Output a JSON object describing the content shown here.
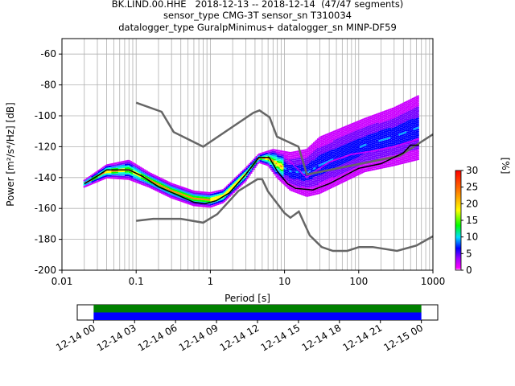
{
  "header": {
    "title_line1": "BK.LIND.00.HHE   2018-12-13 -- 2018-12-14  (47/47 segments)",
    "title_line2": "sensor_type CMG-3T sensor_sn T310034",
    "title_line3": "datalogger_type GuralpMinimus+ datalogger_sn MINP-DF59"
  },
  "chart_data": [
    {
      "type": "heatmap",
      "title": "BK.LIND.00.HHE   2018-12-13 -- 2018-12-14  (47/47 segments)",
      "xlabel": "Period [s]",
      "ylabel": "Power [m²/s⁴/Hz] [dB]",
      "x_scale": "log",
      "xlim": [
        0.01,
        1000
      ],
      "ylim": [
        -200,
        -50
      ],
      "x_ticks": [
        "0.01",
        "0.1",
        "1",
        "10",
        "100",
        "1000"
      ],
      "x_tick_values": [
        0.01,
        0.1,
        1,
        10,
        100,
        1000
      ],
      "y_ticks": [
        "-60",
        "-80",
        "-100",
        "-120",
        "-140",
        "-160",
        "-180",
        "-200"
      ],
      "y_tick_values": [
        -60,
        -80,
        -100,
        -120,
        -140,
        -160,
        -180,
        -200
      ],
      "grid": true,
      "colorbar": {
        "label": "[%]",
        "range": [
          0,
          30
        ],
        "ticks": [
          "0",
          "5",
          "10",
          "15",
          "20",
          "25",
          "30"
        ],
        "tick_values": [
          0,
          5,
          10,
          15,
          20,
          25,
          30
        ]
      },
      "series": [
        {
          "role": "nhnm",
          "color": "#666666",
          "points": [
            [
              0.1,
              -91.5
            ],
            [
              0.22,
              -97.4
            ],
            [
              0.32,
              -110.5
            ],
            [
              0.8,
              -120
            ],
            [
              3.8,
              -98
            ],
            [
              4.6,
              -96.5
            ],
            [
              6.3,
              -101
            ],
            [
              7.9,
              -113.5
            ],
            [
              15.4,
              -120
            ],
            [
              20,
              -138
            ],
            [
              354.8,
              -126
            ],
            [
              1000,
              -112
            ]
          ]
        },
        {
          "role": "nlnm",
          "color": "#666666",
          "points": [
            [
              0.1,
              -168
            ],
            [
              0.17,
              -166.7
            ],
            [
              0.4,
              -166.7
            ],
            [
              0.8,
              -169.2
            ],
            [
              1.24,
              -163.7
            ],
            [
              2.4,
              -148.6
            ],
            [
              4.3,
              -141.1
            ],
            [
              5,
              -141.1
            ],
            [
              6,
              -149
            ],
            [
              10,
              -163
            ],
            [
              12,
              -166
            ],
            [
              15.6,
              -162
            ],
            [
              21.9,
              -177.5
            ],
            [
              31.6,
              -185
            ],
            [
              45,
              -187.5
            ],
            [
              70,
              -187.5
            ],
            [
              101,
              -185
            ],
            [
              154,
              -185
            ],
            [
              328,
              -187.5
            ],
            [
              600,
              -184
            ],
            [
              1000,
              -178
            ]
          ]
        },
        {
          "role": "mode",
          "color": "#000000",
          "points": [
            [
              0.02,
              -144
            ],
            [
              0.03,
              -139
            ],
            [
              0.04,
              -135
            ],
            [
              0.08,
              -135
            ],
            [
              0.12,
              -139
            ],
            [
              0.2,
              -146
            ],
            [
              0.35,
              -151
            ],
            [
              0.6,
              -156
            ],
            [
              0.85,
              -157
            ],
            [
              1.2,
              -155
            ],
            [
              1.8,
              -150
            ],
            [
              3,
              -138
            ],
            [
              4.5,
              -127
            ],
            [
              6.2,
              -127
            ],
            [
              8,
              -136
            ],
            [
              11,
              -144
            ],
            [
              14,
              -147
            ],
            [
              24,
              -148
            ],
            [
              40,
              -144
            ],
            [
              100,
              -134
            ],
            [
              200,
              -131
            ],
            [
              400,
              -124
            ],
            [
              500,
              -119
            ],
            [
              650,
              -119
            ]
          ]
        },
        {
          "role": "distribution-lower-branch",
          "color": "#cc00ff",
          "points": [
            [
              0.02,
              -146
            ],
            [
              0.04,
              -140
            ],
            [
              0.08,
              -141
            ],
            [
              0.15,
              -146
            ],
            [
              0.3,
              -153
            ],
            [
              0.6,
              -158
            ],
            [
              1,
              -159
            ],
            [
              1.5,
              -156
            ],
            [
              3,
              -142
            ],
            [
              4.5,
              -130
            ],
            [
              6,
              -132
            ],
            [
              8,
              -140
            ],
            [
              12,
              -148
            ],
            [
              20,
              -152
            ],
            [
              30,
              -150
            ],
            [
              60,
              -143
            ],
            [
              120,
              -136
            ],
            [
              300,
              -132
            ],
            [
              650,
              -128
            ]
          ]
        },
        {
          "role": "distribution-upper-branch",
          "color": "#cc00ff",
          "points": [
            [
              0.02,
              -142
            ],
            [
              0.04,
              -132
            ],
            [
              0.08,
              -129
            ],
            [
              0.15,
              -137
            ],
            [
              0.3,
              -144
            ],
            [
              0.6,
              -149
            ],
            [
              1,
              -150
            ],
            [
              1.5,
              -148
            ],
            [
              3,
              -134
            ],
            [
              4.5,
              -125
            ],
            [
              7,
              -122
            ],
            [
              12,
              -124
            ],
            [
              20,
              -122
            ],
            [
              30,
              -114
            ],
            [
              60,
              -108
            ],
            [
              120,
              -102
            ],
            [
              300,
              -95
            ],
            [
              650,
              -87
            ]
          ]
        },
        {
          "role": "distribution-mid-branch",
          "color": "#cc00ff",
          "points": [
            [
              10,
              -126
            ],
            [
              20,
              -140
            ],
            [
              40,
              -130
            ],
            [
              80,
              -125
            ],
            [
              150,
              -123
            ],
            [
              300,
              -120
            ],
            [
              650,
              -115
            ]
          ]
        }
      ]
    },
    {
      "type": "timeline",
      "x_ticks": [
        "12-14 00",
        "12-14 03",
        "12-14 06",
        "12-14 09",
        "12-14 12",
        "12-14 15",
        "12-14 18",
        "12-14 21",
        "12-15 00"
      ],
      "x_tick_hours": [
        0,
        3,
        6,
        9,
        12,
        15,
        18,
        21,
        24
      ],
      "xlim_hours": [
        -1.2,
        25.2
      ],
      "bars": [
        {
          "start_hour": 0,
          "end_hour": 24,
          "color": "#008000"
        },
        {
          "start_hour": 0,
          "end_hour": 24,
          "color": "#0000ff"
        }
      ]
    }
  ]
}
